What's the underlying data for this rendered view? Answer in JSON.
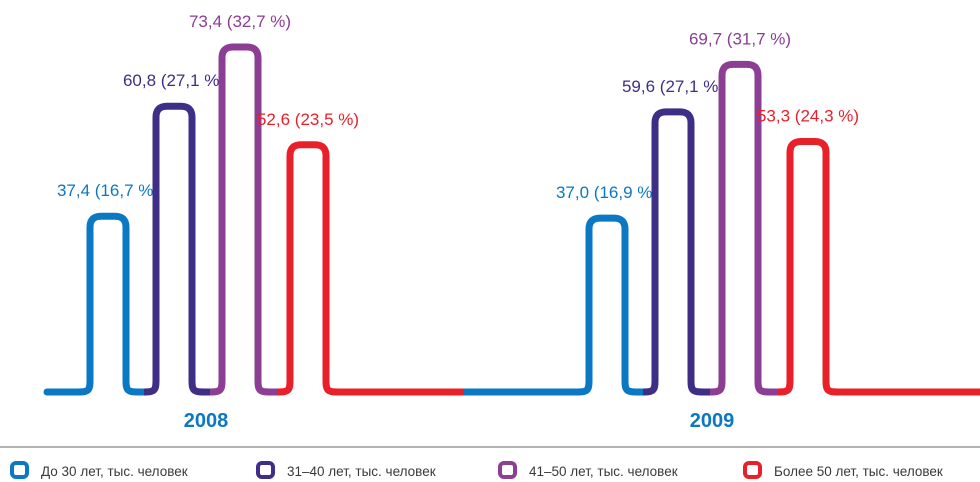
{
  "colors": {
    "under30": "#0a78c3",
    "age31_40": "#3f2e86",
    "age41_50": "#8c3d94",
    "over50": "#e8202a",
    "year": "#0a78c3",
    "divider": "#9a9a9a"
  },
  "chart_data": {
    "type": "line",
    "title": "",
    "xlabel": "",
    "ylabel": "",
    "grid": false,
    "legend_position": "bottom",
    "groups": [
      {
        "year": "2008",
        "bars": [
          {
            "series": "under30",
            "value": 37.4,
            "label": "37,4 (16,7 %)"
          },
          {
            "series": "age31_40",
            "value": 60.8,
            "label": "60,8 (27,1 %)"
          },
          {
            "series": "age41_50",
            "value": 73.4,
            "label": "73,4 (32,7 %)"
          },
          {
            "series": "over50",
            "value": 52.6,
            "label": "52,6 (23,5 %)"
          }
        ]
      },
      {
        "year": "2009",
        "bars": [
          {
            "series": "under30",
            "value": 37.0,
            "label": "37,0 (16,9 %)"
          },
          {
            "series": "age31_40",
            "value": 59.6,
            "label": "59,6 (27,1 %)"
          },
          {
            "series": "age41_50",
            "value": 69.7,
            "label": "69,7 (31,7 %)"
          },
          {
            "series": "over50",
            "value": 53.3,
            "label": "53,3 (24,3 %)"
          }
        ]
      }
    ],
    "legend": [
      {
        "series": "under30",
        "name": "До 30 лет, тыс. человек"
      },
      {
        "series": "age31_40",
        "name": "31–40 лет, тыс. человек"
      },
      {
        "series": "age41_50",
        "name": "41–50 лет, тыс. человек"
      },
      {
        "series": "over50",
        "name": "Более 50 лет, тыс. человек"
      }
    ]
  }
}
